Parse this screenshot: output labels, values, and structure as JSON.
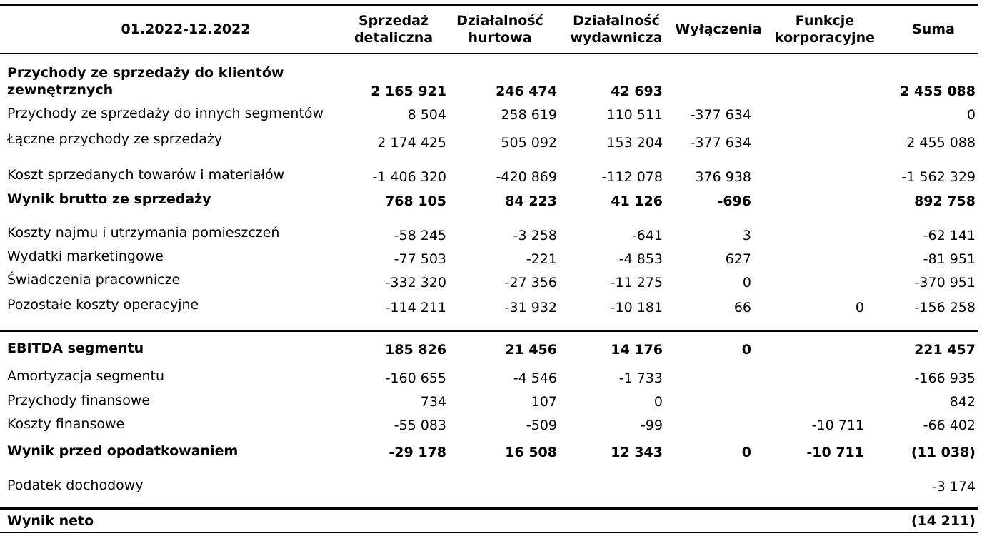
{
  "header": {
    "period": "01.2022-12.2022",
    "columns": [
      "Sprzedaż detaliczna",
      "Działalność hurtowa",
      "Działalność wydawnicza",
      "Wyłączenia",
      "Funkcje korporacyjne",
      "Suma"
    ]
  },
  "table": {
    "rows": [
      {
        "label": "Przychody ze sprzedaży do klientów zewnętrznych",
        "values": [
          "2 165 921",
          "246 474",
          "42 693",
          null,
          null,
          "2 455 088"
        ]
      },
      {
        "label": "Przychody ze sprzedaży do innych segmentów",
        "values": [
          "8 504",
          "258 619",
          "110 511",
          "-377 634",
          null,
          "0"
        ]
      },
      {
        "label": "Łączne przychody ze sprzedaży",
        "values": [
          "2 174 425",
          "505 092",
          "153 204",
          "-377 634",
          null,
          "2 455 088"
        ]
      },
      {
        "label": "Koszt sprzedanych towarów i materiałów",
        "values": [
          "-1 406 320",
          "-420 869",
          "-112 078",
          "376 938",
          null,
          "-1 562 329"
        ]
      },
      {
        "label": "Wynik brutto ze sprzedaży",
        "values": [
          "768 105",
          "84 223",
          "41 126",
          "-696",
          null,
          "892 758"
        ]
      },
      {
        "label": "Koszty najmu i utrzymania pomieszczeń",
        "values": [
          "-58 245",
          "-3 258",
          "-641",
          "3",
          null,
          "-62 141"
        ]
      },
      {
        "label": "Wydatki marketingowe",
        "values": [
          "-77 503",
          "-221",
          "-4 853",
          "627",
          null,
          "-81 951"
        ]
      },
      {
        "label": "Świadczenia pracownicze",
        "values": [
          "-332 320",
          "-27 356",
          "-11 275",
          "0",
          null,
          "-370 951"
        ]
      },
      {
        "label": "Pozostałe koszty operacyjne",
        "values": [
          "-114 211",
          "-31 932",
          "-10 181",
          "66",
          "0",
          "-156 258"
        ]
      },
      {
        "label": "EBITDA segmentu",
        "values": [
          "185 826",
          "21 456",
          "14 176",
          "0",
          null,
          "221 457"
        ]
      },
      {
        "label": "Amortyzacja segmentu",
        "values": [
          "-160 655",
          "-4 546",
          "-1 733",
          null,
          null,
          "-166 935"
        ]
      },
      {
        "label": "Przychody finansowe",
        "values": [
          "734",
          "107",
          "0",
          null,
          null,
          "842"
        ]
      },
      {
        "label": "Koszty finansowe",
        "values": [
          "-55 083",
          "-509",
          "-99",
          null,
          "-10 711",
          "-66 402"
        ]
      },
      {
        "label": "Wynik przed opodatkowaniem",
        "values": [
          "-29 178",
          "16 508",
          "12 343",
          "0",
          "-10 711",
          "(11 038)"
        ]
      },
      {
        "label": "Podatek dochodowy",
        "values": [
          null,
          null,
          null,
          null,
          null,
          "-3 174"
        ]
      },
      {
        "label": "Wynik neto",
        "values": [
          null,
          null,
          null,
          null,
          null,
          "(14 211)"
        ]
      }
    ]
  }
}
